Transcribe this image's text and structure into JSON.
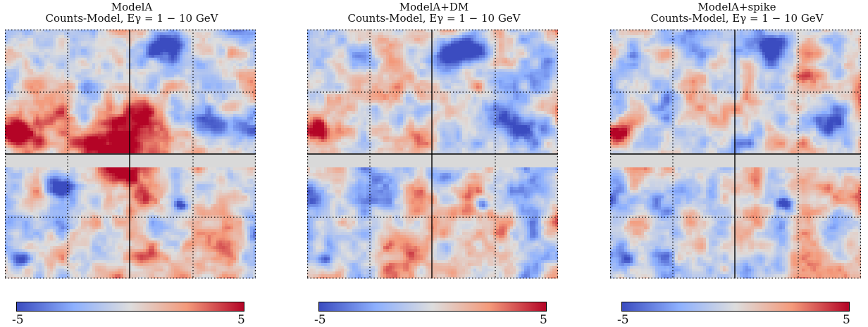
{
  "panels": [
    {
      "title": "ModelA",
      "subtitle": "Counts-Model, Eγ = 1 − 10 GeV",
      "seed": 11,
      "variant": "base"
    },
    {
      "title": "ModelA+DM",
      "subtitle": "Counts-Model, Eγ = 1 − 10 GeV",
      "seed": 23,
      "variant": "dm"
    },
    {
      "title": "ModelA+spike",
      "subtitle": "Counts-Model, Eγ = 1 − 10 GeV",
      "seed": 37,
      "variant": "spike"
    }
  ],
  "colorbar": {
    "min_label": "-5",
    "max_label": "5",
    "min": -5,
    "max": 5,
    "colormap": "coolwarm"
  },
  "chart_data": [
    {
      "type": "heatmap",
      "title": "ModelA",
      "subtitle": "Counts-Model, Eγ = 1 − 10 GeV",
      "zlim": [
        -5,
        5
      ],
      "grid": true,
      "colormap": "coolwarm"
    },
    {
      "type": "heatmap",
      "title": "ModelA+DM",
      "subtitle": "Counts-Model, Eγ = 1 − 10 GeV",
      "zlim": [
        -5,
        5
      ],
      "grid": true,
      "colormap": "coolwarm"
    },
    {
      "type": "heatmap",
      "title": "ModelA+spike",
      "subtitle": "Counts-Model, Eγ = 1 − 10 GeV",
      "zlim": [
        -5,
        5
      ],
      "grid": true,
      "colormap": "coolwarm"
    }
  ],
  "colors": {
    "masked_band": "#d9d9d9",
    "cold": "#3b4cc0",
    "neutral": "#dddddd",
    "hot": "#b40426"
  }
}
